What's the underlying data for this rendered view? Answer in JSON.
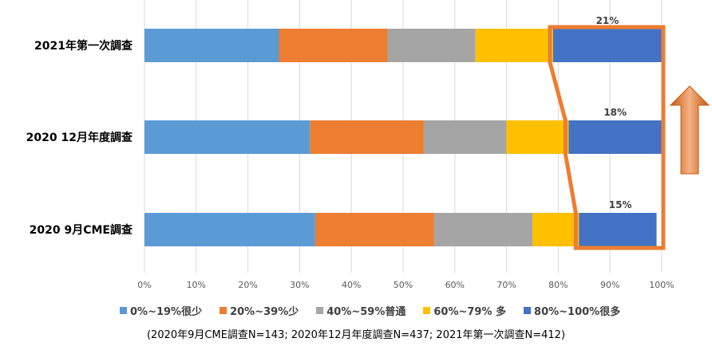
{
  "chart_data": {
    "type": "bar",
    "orientation": "horizontal",
    "stacked": true,
    "percent_stacked": true,
    "categories": [
      "2021年第一次調查",
      "2020 12月年度調查",
      "2020 9月CME調查"
    ],
    "series": [
      {
        "name": "0%~19%很少",
        "color": "#5B9BD5",
        "values": [
          26,
          32,
          33
        ]
      },
      {
        "name": "20%~39%少",
        "color": "#ED7D31",
        "values": [
          21,
          22,
          23
        ]
      },
      {
        "name": "40%~59%普通",
        "color": "#A5A5A5",
        "values": [
          17,
          16,
          19
        ]
      },
      {
        "name": "60%~79% 多",
        "color": "#FFC000",
        "values": [
          15,
          12,
          9
        ]
      },
      {
        "name": "80%~100%很多",
        "color": "#4472C4",
        "values": [
          21,
          18,
          15
        ]
      }
    ],
    "data_labels": [
      "21%",
      "18%",
      "15%"
    ],
    "x_ticks": [
      "0%",
      "10%",
      "20%",
      "30%",
      "40%",
      "50%",
      "60%",
      "70%",
      "80%",
      "90%",
      "100%"
    ],
    "xlim": [
      0,
      100
    ],
    "grid": "vertical",
    "legend_position": "bottom",
    "highlight_color": "#ED7D31",
    "arrow_direction": "up"
  },
  "footnote": "(2020年9月CME調查N=143;  2020年12月年度調查N=437;  2021年第一次調查N=412)"
}
